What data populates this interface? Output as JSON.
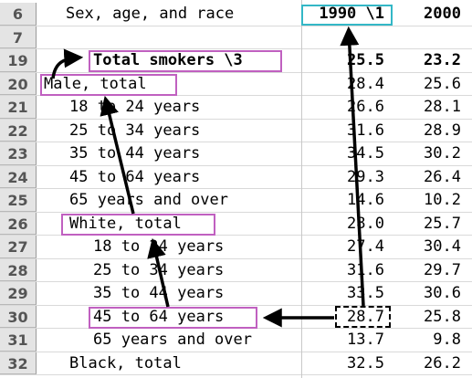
{
  "header": {
    "row_number": "6",
    "label": "Sex, age, and race",
    "col_1990": "1990 \\1",
    "col_2000": "2000"
  },
  "rows": [
    {
      "num": "7",
      "label": "",
      "v1990": "",
      "v2000": ""
    },
    {
      "num": "19",
      "label": "Total smokers \\3",
      "v1990": "25.5",
      "v2000": "23.2"
    },
    {
      "num": "20",
      "label": "Male, total",
      "v1990": "28.4",
      "v2000": "25.6"
    },
    {
      "num": "21",
      "label": "18 to 24 years",
      "v1990": "26.6",
      "v2000": "28.1"
    },
    {
      "num": "22",
      "label": "25 to 34 years",
      "v1990": "31.6",
      "v2000": "28.9"
    },
    {
      "num": "23",
      "label": "35 to 44 years",
      "v1990": "34.5",
      "v2000": "30.2"
    },
    {
      "num": "24",
      "label": "45 to 64 years",
      "v1990": "29.3",
      "v2000": "26.4"
    },
    {
      "num": "25",
      "label": "65 years and over",
      "v1990": "14.6",
      "v2000": "10.2"
    },
    {
      "num": "26",
      "label": "White, total",
      "v1990": "28.0",
      "v2000": "25.7"
    },
    {
      "num": "27",
      "label": "18 to 24 years",
      "v1990": "27.4",
      "v2000": "30.4"
    },
    {
      "num": "28",
      "label": "25 to 34 years",
      "v1990": "31.6",
      "v2000": "29.7"
    },
    {
      "num": "29",
      "label": "35 to 44 years",
      "v1990": "33.5",
      "v2000": "30.6"
    },
    {
      "num": "30",
      "label": "45 to 64 years",
      "v1990": "28.7",
      "v2000": "25.8"
    },
    {
      "num": "31",
      "label": "65 years and over",
      "v1990": "13.7",
      "v2000": "9.8"
    },
    {
      "num": "32",
      "label": "Black, total",
      "v1990": "32.5",
      "v2000": "26.2"
    }
  ],
  "colors": {
    "highlight_box": "#c060c0",
    "header_highlight": "#33b7c6",
    "row_header_bg": "#e4e4e4"
  }
}
